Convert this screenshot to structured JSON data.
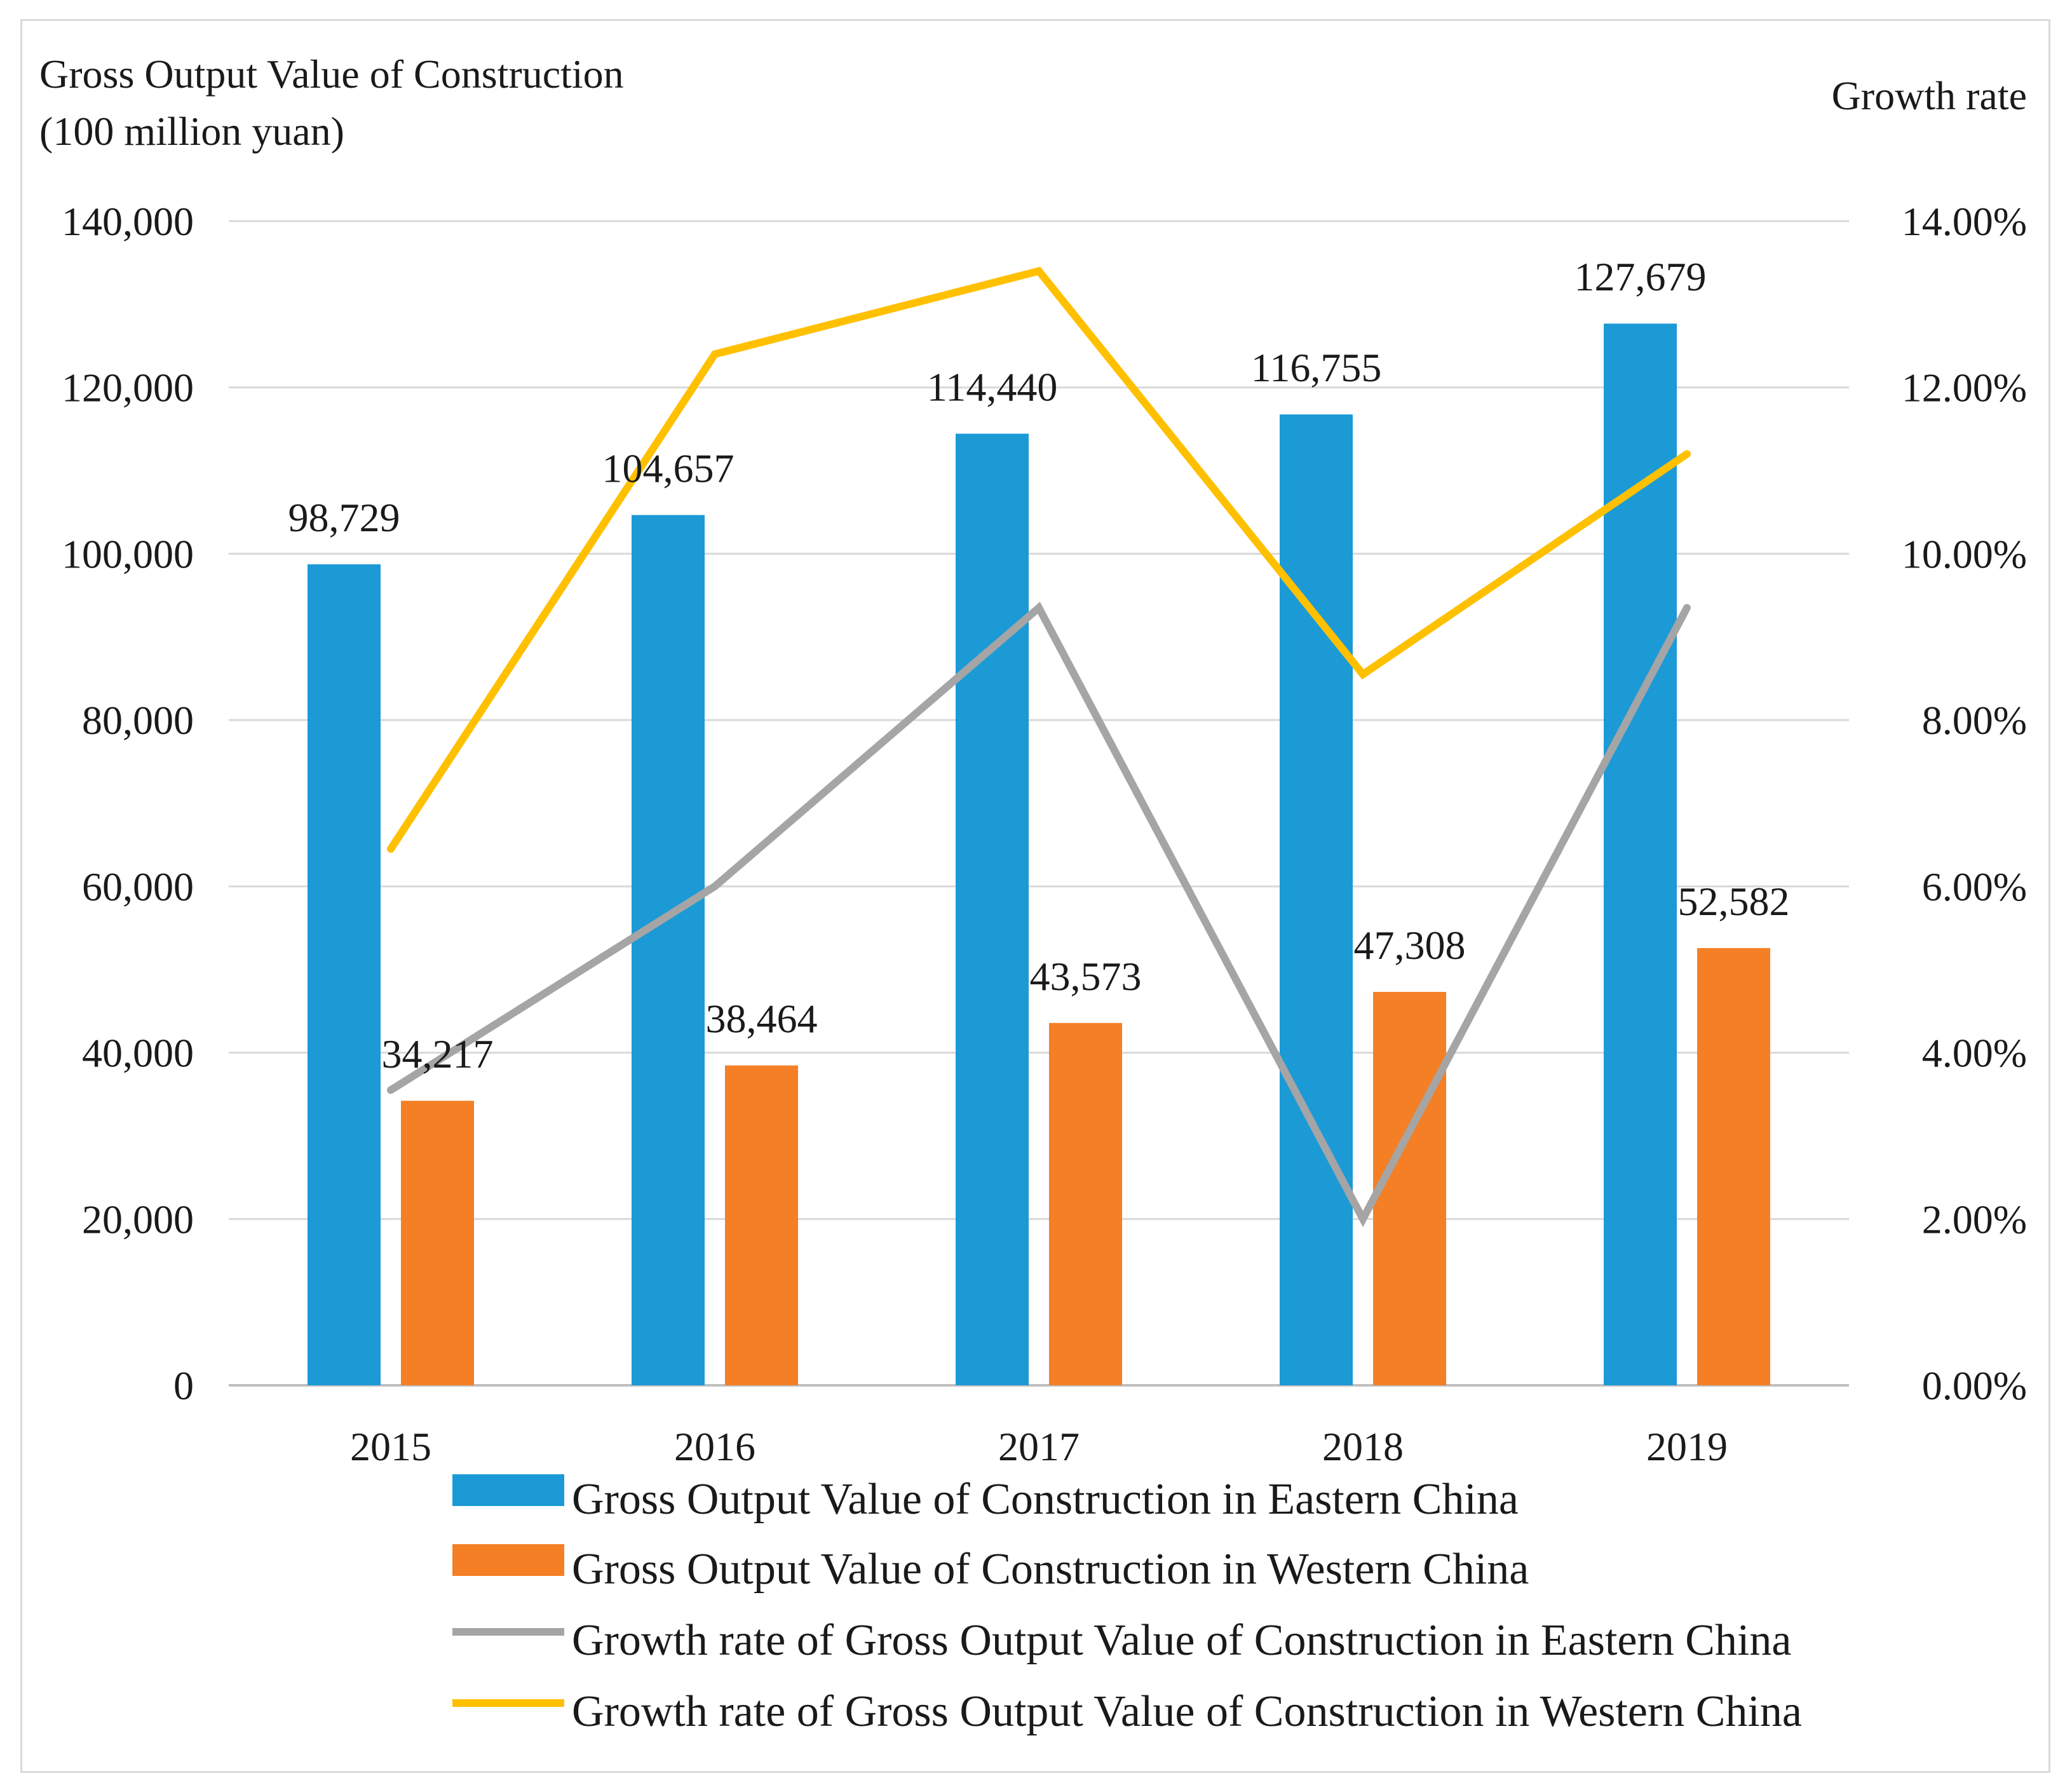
{
  "chart_data": {
    "type": "bar",
    "categories": [
      "2015",
      "2016",
      "2017",
      "2018",
      "2019"
    ],
    "left_axis": {
      "title_line1": "Gross Output Value of Construction",
      "title_line2": "(100 million yuan)",
      "ylim": [
        0,
        140000
      ],
      "ticks": [
        0,
        20000,
        40000,
        60000,
        80000,
        100000,
        120000,
        140000
      ],
      "tick_labels": [
        "0",
        "20,000",
        "40,000",
        "60,000",
        "80,000",
        "100,000",
        "120,000",
        "140,000"
      ]
    },
    "right_axis": {
      "title": "Growth rate",
      "ylim": [
        0,
        14
      ],
      "ticks": [
        0,
        2,
        4,
        6,
        8,
        10,
        12,
        14
      ],
      "tick_labels": [
        "0.00%",
        "2.00%",
        "4.00%",
        "6.00%",
        "8.00%",
        "10.00%",
        "12.00%",
        "14.00%"
      ]
    },
    "bar_series": [
      {
        "name": "Gross Output Value of Construction in Eastern China",
        "color": "#1c9ad6",
        "values": [
          98729,
          104657,
          114440,
          116755,
          127679
        ],
        "labels": [
          "98,729",
          "104,657",
          "114,440",
          "116,755",
          "127,679"
        ]
      },
      {
        "name": "Gross Output Value of Construction in Western China",
        "color": "#f47f24",
        "values": [
          34217,
          38464,
          43573,
          47308,
          52582
        ],
        "labels": [
          "34,217",
          "38,464",
          "43,573",
          "47,308",
          "52,582"
        ]
      }
    ],
    "line_series": [
      {
        "name": "Growth rate of Gross Output Value of Construction in Eastern China",
        "color": "#a5a5a5",
        "values": [
          3.55,
          6.0,
          9.35,
          2.0,
          9.35
        ]
      },
      {
        "name": "Growth rate of Gross Output Value of Construction in Western China",
        "color": "#ffc000",
        "values": [
          6.45,
          12.4,
          13.4,
          8.55,
          11.2
        ]
      }
    ],
    "gridlines": true,
    "legend_position": "bottom"
  }
}
